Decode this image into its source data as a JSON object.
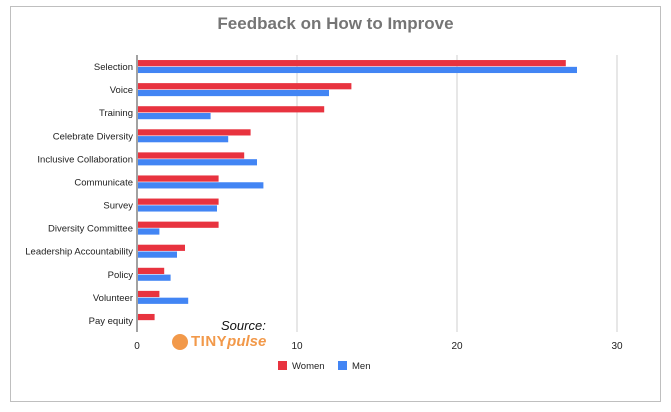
{
  "chart_data": {
    "type": "bar",
    "orientation": "horizontal",
    "title": "Feedback on How to Improve",
    "categories": [
      "Selection",
      "Voice",
      "Training",
      "Celebrate Diversity",
      "Inclusive Collaboration",
      "Communicate",
      "Survey",
      "Diversity Committee",
      "Leadership Accountability",
      "Policy",
      "Volunteer",
      "Pay equity"
    ],
    "series": [
      {
        "name": "Women",
        "color": "#e8333f",
        "values": [
          26.8,
          13.4,
          11.7,
          7.1,
          6.7,
          5.1,
          5.1,
          5.1,
          3.0,
          1.7,
          1.4,
          1.1
        ]
      },
      {
        "name": "Men",
        "color": "#4285f4",
        "values": [
          27.5,
          12.0,
          4.6,
          5.7,
          7.5,
          7.9,
          5.0,
          1.4,
          2.5,
          2.1,
          3.2,
          0
        ]
      }
    ],
    "xlim": [
      0,
      31
    ],
    "xticks": [
      0,
      10,
      20,
      30
    ],
    "grid": true,
    "legend": "bottom"
  },
  "source": {
    "label": "Source:",
    "logo_text_a": "TINY",
    "logo_text_b": "pulse"
  }
}
